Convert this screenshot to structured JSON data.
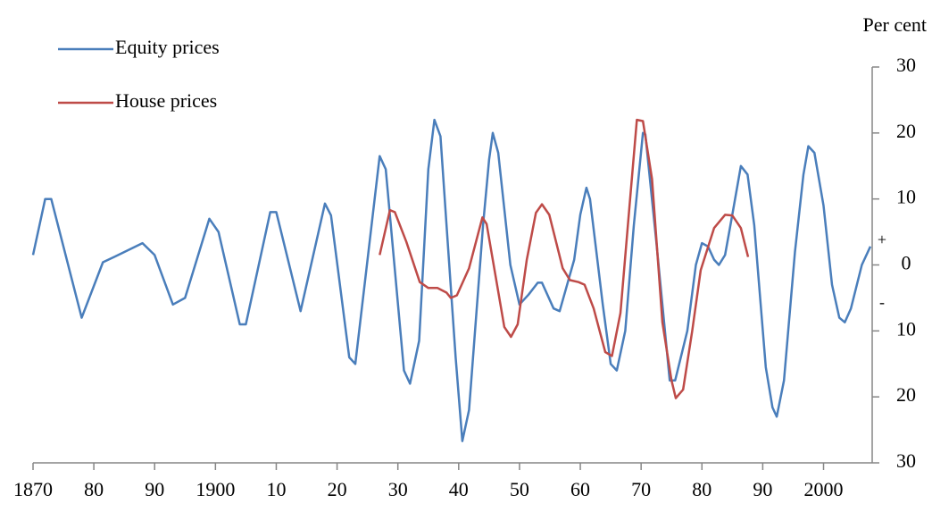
{
  "chart_data": {
    "type": "line",
    "y_axis_label": "Per cent",
    "annotations": [
      "+",
      "-"
    ],
    "legend": "top-left",
    "xlim": [
      1870,
      2008
    ],
    "xticks": [
      1870,
      {
        "value": 1880,
        "label": "80"
      },
      {
        "value": 1890,
        "label": "90"
      },
      1900,
      {
        "value": 1910,
        "label": "10"
      },
      {
        "value": 1920,
        "label": "20"
      },
      {
        "value": 1930,
        "label": "30"
      },
      {
        "value": 1940,
        "label": "40"
      },
      {
        "value": 1950,
        "label": "50"
      },
      {
        "value": 1960,
        "label": "60"
      },
      {
        "value": 1970,
        "label": "70"
      },
      {
        "value": 1980,
        "label": "80"
      },
      {
        "value": 1990,
        "label": "90"
      },
      2000
    ],
    "ylim": [
      -30,
      30
    ],
    "yticks": [
      30,
      20,
      10,
      0,
      {
        "value": -10,
        "label": "10"
      },
      {
        "value": -20,
        "label": "20"
      },
      {
        "value": -30,
        "label": "30"
      }
    ],
    "series": [
      {
        "name": "Equity prices",
        "color": "#4a7ebb",
        "x": [
          1870,
          1872,
          1873,
          1878,
          1881.5,
          1884,
          1888,
          1890,
          1893,
          1895,
          1899,
          1900.5,
          1904,
          1905,
          1909,
          1910,
          1914,
          1918,
          1919,
          1922,
          1923,
          1927,
          1928,
          1931,
          1932,
          1933.5,
          1935,
          1936,
          1937,
          1938,
          1939.5,
          1940.6,
          1941.7,
          1944,
          1945,
          1945.6,
          1946.5,
          1948.5,
          1950,
          1951.5,
          1953,
          1953.7,
          1955.6,
          1956.6,
          1959,
          1960,
          1961,
          1961.6,
          1963.7,
          1965,
          1966,
          1967.4,
          1968.8,
          1970.3,
          1970.7,
          1972.5,
          1974.7,
          1975.6,
          1977.6,
          1979,
          1980,
          1981,
          1982,
          1982.8,
          1983.8,
          1985,
          1986.4,
          1987.5,
          1988.6,
          1990.5,
          1991.6,
          1992.3,
          1993.5,
          1995.3,
          1996.7,
          1997.5,
          1998.5,
          2000,
          2001.4,
          2002.6,
          2003.5,
          2004.5,
          2006.3,
          2007.7
        ],
        "values": [
          1.5,
          10,
          10,
          -8,
          0.4,
          1.5,
          3.3,
          1.5,
          -6,
          -5,
          7,
          5,
          -9,
          -9,
          8,
          8,
          -7,
          9.3,
          7.5,
          -14,
          -15,
          16.5,
          14.5,
          -16,
          -18,
          -11.5,
          14.5,
          22,
          19.5,
          6,
          -14,
          -26.7,
          -22,
          6,
          16,
          20,
          17,
          0,
          -6,
          -4.5,
          -2.7,
          -2.7,
          -6.6,
          -7,
          0.8,
          7.6,
          11.7,
          10,
          -6,
          -15,
          -16,
          -10,
          6,
          20,
          19.8,
          3.5,
          -17.5,
          -17.5,
          -10,
          0,
          3.3,
          2.8,
          0.8,
          0,
          1.5,
          7.6,
          15,
          13.7,
          6,
          -15.5,
          -21.6,
          -23,
          -17.5,
          2,
          13.7,
          18,
          17,
          9,
          -3,
          -8,
          -8.7,
          -6.6,
          0,
          2.8
        ]
      },
      {
        "name": "House prices",
        "color": "#be4b48",
        "x": [
          1927,
          1928.7,
          1929.5,
          1931.4,
          1933.6,
          1935,
          1936.5,
          1938,
          1938.7,
          1939.7,
          1941.7,
          1943.9,
          1944.6,
          1946.1,
          1947.5,
          1948.6,
          1949.7,
          1951.2,
          1952.7,
          1953.7,
          1954.9,
          1957.1,
          1958.3,
          1959.7,
          1960.7,
          1962.2,
          1964.1,
          1965.2,
          1966.6,
          1968.1,
          1969.3,
          1970.3,
          1971.8,
          1973.5,
          1975,
          1975.7,
          1976.9,
          1978.4,
          1979.8,
          1982,
          1983.8,
          1985,
          1986.4,
          1987.6
        ],
        "values": [
          1.5,
          8.3,
          8,
          3.5,
          -2.6,
          -3.5,
          -3.5,
          -4.2,
          -5,
          -4.6,
          -0.5,
          7.2,
          6.2,
          -1.9,
          -9.4,
          -10.9,
          -9,
          0.8,
          7.9,
          9.2,
          7.6,
          -0.5,
          -2.3,
          -2.6,
          -3,
          -6.6,
          -13.2,
          -13.8,
          -7.3,
          9,
          22,
          21.8,
          13,
          -8.7,
          -17.5,
          -20.2,
          -18.9,
          -10,
          -0.8,
          5.6,
          7.6,
          7.5,
          5.6,
          1.2
        ]
      }
    ]
  }
}
